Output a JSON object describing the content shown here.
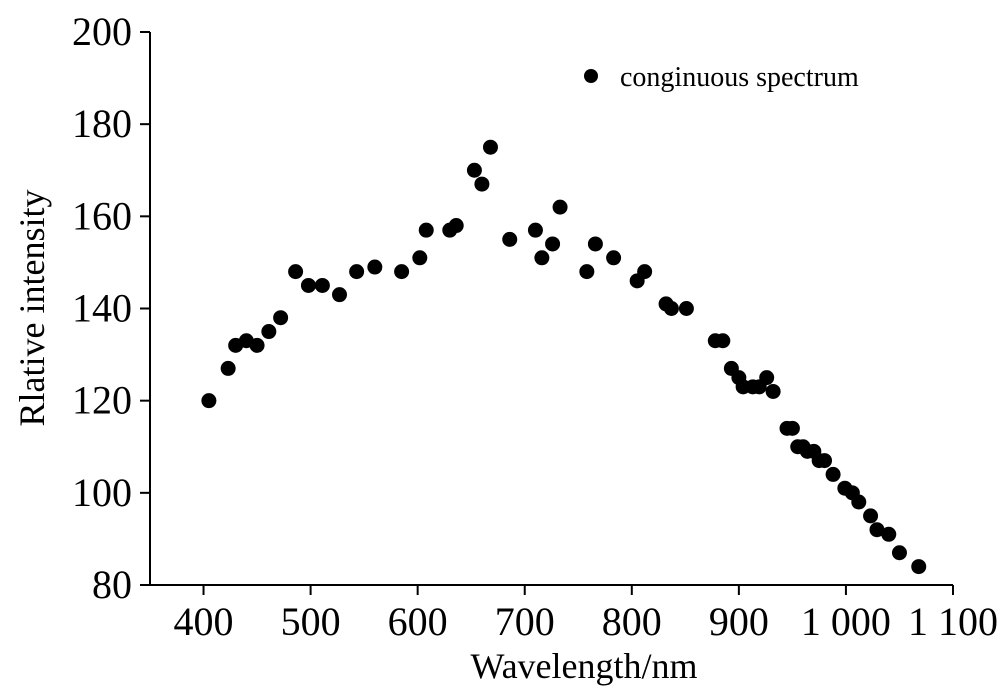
{
  "chart_data": {
    "type": "scatter",
    "title": "",
    "xlabel": "Wavelength/nm",
    "ylabel": "Rlative intensity",
    "xlim": [
      350,
      1100
    ],
    "ylim": [
      80,
      200
    ],
    "xticks": [
      400,
      500,
      600,
      700,
      800,
      900,
      1000,
      1100
    ],
    "xtick_labels": [
      "400",
      "500",
      "600",
      "700",
      "800",
      "900",
      "1 000",
      "1 100"
    ],
    "yticks": [
      80,
      100,
      120,
      140,
      160,
      180,
      200
    ],
    "ytick_labels": [
      "80",
      "100",
      "120",
      "140",
      "160",
      "180",
      "200"
    ],
    "grid": false,
    "legend_position": "top-right",
    "series": [
      {
        "name": "conginuous spectrum",
        "color": "#000000",
        "points": [
          [
            405,
            120
          ],
          [
            423,
            127
          ],
          [
            430,
            132
          ],
          [
            440,
            133
          ],
          [
            450,
            132
          ],
          [
            461,
            135
          ],
          [
            472,
            138
          ],
          [
            486,
            148
          ],
          [
            498,
            145
          ],
          [
            511,
            145
          ],
          [
            527,
            143
          ],
          [
            543,
            148
          ],
          [
            560,
            149
          ],
          [
            585,
            148
          ],
          [
            602,
            151
          ],
          [
            608,
            157
          ],
          [
            630,
            157
          ],
          [
            636,
            158
          ],
          [
            653,
            170
          ],
          [
            660,
            167
          ],
          [
            668,
            175
          ],
          [
            686,
            155
          ],
          [
            710,
            157
          ],
          [
            716,
            151
          ],
          [
            726,
            154
          ],
          [
            733,
            162
          ],
          [
            758,
            148
          ],
          [
            766,
            154
          ],
          [
            783,
            151
          ],
          [
            805,
            146
          ],
          [
            812,
            148
          ],
          [
            832,
            141
          ],
          [
            837,
            140
          ],
          [
            851,
            140
          ],
          [
            878,
            133
          ],
          [
            885,
            133
          ],
          [
            893,
            127
          ],
          [
            900,
            125
          ],
          [
            904,
            123
          ],
          [
            913,
            123
          ],
          [
            919,
            123
          ],
          [
            926,
            125
          ],
          [
            932,
            122
          ],
          [
            945,
            114
          ],
          [
            950,
            114
          ],
          [
            955,
            110
          ],
          [
            960,
            110
          ],
          [
            964,
            109
          ],
          [
            970,
            109
          ],
          [
            975,
            107
          ],
          [
            980,
            107
          ],
          [
            988,
            104
          ],
          [
            999,
            101
          ],
          [
            1006,
            100
          ],
          [
            1012,
            98
          ],
          [
            1023,
            95
          ],
          [
            1029,
            92
          ],
          [
            1040,
            91
          ],
          [
            1050,
            87
          ],
          [
            1068,
            84
          ]
        ]
      }
    ]
  }
}
